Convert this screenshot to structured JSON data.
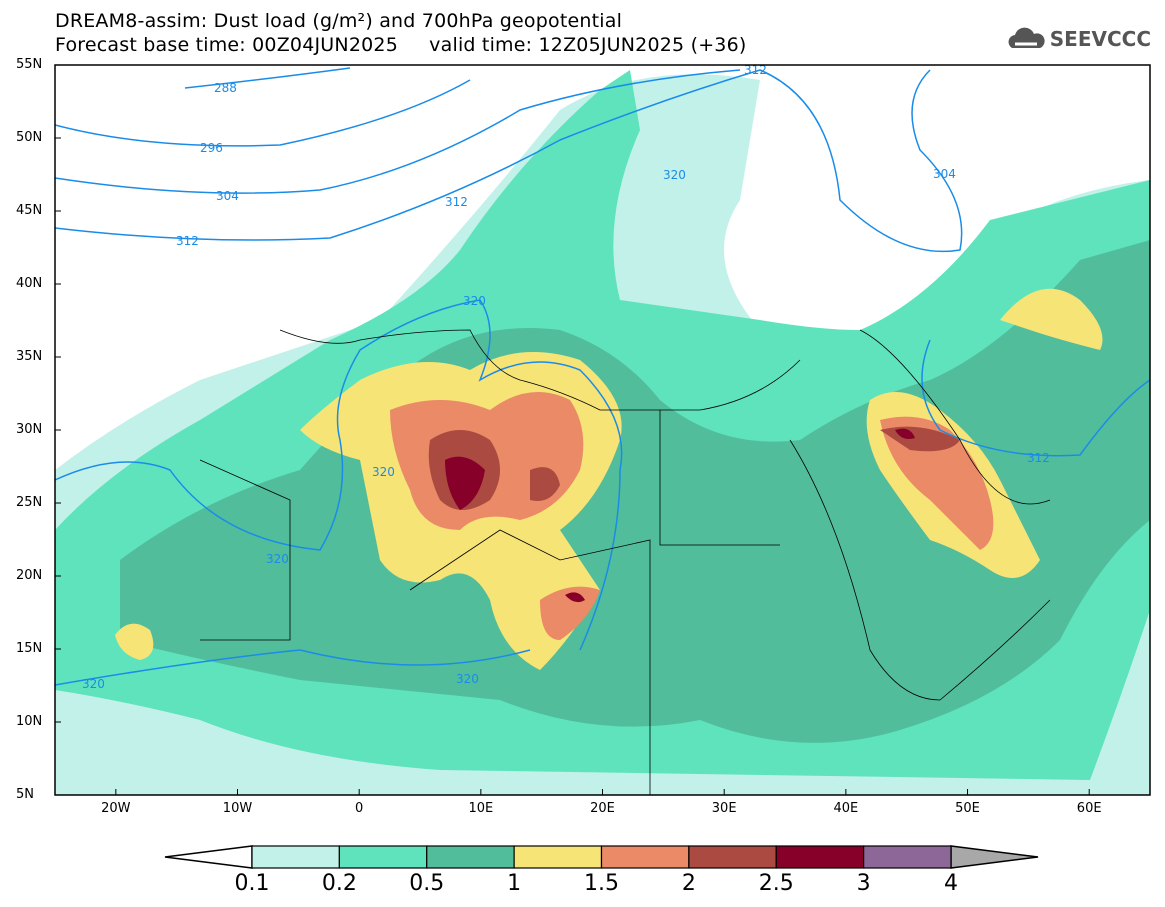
{
  "title": {
    "line1": "DREAM8-assim: Dust load (g/m²) and 700hPa geopotential",
    "line2": "Forecast base time: 00Z04JUN2025     valid time: 12Z05JUN2025 (+36)"
  },
  "logo": {
    "text": "SEEVCCC",
    "icon": "cloud-icon"
  },
  "lat_ticks": [
    "55N",
    "50N",
    "45N",
    "40N",
    "35N",
    "30N",
    "25N",
    "20N",
    "15N",
    "10N",
    "5N"
  ],
  "lon_ticks": [
    "20W",
    "10W",
    "0",
    "10E",
    "20E",
    "30E",
    "40E",
    "50E",
    "60E"
  ],
  "colorbar": {
    "labels": [
      "0.1",
      "0.2",
      "0.5",
      "1",
      "1.5",
      "2",
      "2.5",
      "3",
      "4"
    ],
    "colors": [
      "#c2f1ea",
      "#5ee3bd",
      "#52bd9b",
      "#f7e477",
      "#ea8a67",
      "#ab4a40",
      "#860029",
      "#8d6798"
    ],
    "over_color": "#a8a8a8"
  },
  "contour_labels": [
    "288",
    "296",
    "304",
    "312",
    "312",
    "320",
    "320",
    "320",
    "320",
    "320",
    "320",
    "312",
    "304",
    "312",
    "320"
  ]
}
